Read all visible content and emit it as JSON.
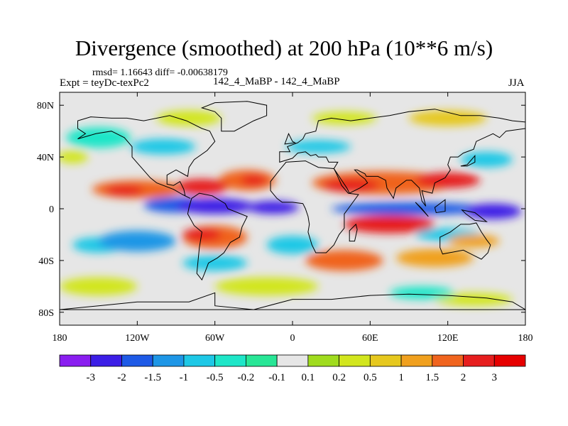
{
  "header": {
    "title": "Divergence (smoothed) at 200 hPa (10**6 m/s)",
    "stats": "rmsd= 1.16643 diff= -0.00638179",
    "expt": "Expt = teyDc-texPc2",
    "subtitle": "142_4_MaBP - 142_4_MaBP",
    "season": "JJA"
  },
  "chart_data": {
    "type": "heatmap",
    "title": "Divergence (smoothed) at 200 hPa (10**6 m/s)",
    "units": "10**6 m/s",
    "xlim": [
      -180,
      180
    ],
    "ylim": [
      -90,
      90
    ],
    "x_ticks": [
      {
        "value": -180,
        "label": "180"
      },
      {
        "value": -120,
        "label": "120W"
      },
      {
        "value": -60,
        "label": "60W"
      },
      {
        "value": 0,
        "label": "0"
      },
      {
        "value": 60,
        "label": "60E"
      },
      {
        "value": 120,
        "label": "120E"
      },
      {
        "value": 180,
        "label": "180"
      }
    ],
    "y_ticks": [
      {
        "value": 80,
        "label": "80N"
      },
      {
        "value": 40,
        "label": "40N"
      },
      {
        "value": 0,
        "label": "0"
      },
      {
        "value": -40,
        "label": "40S"
      },
      {
        "value": -80,
        "label": "80S"
      }
    ],
    "colorbar": {
      "levels": [
        "-3",
        "-2",
        "-1.5",
        "-1",
        "-0.5",
        "-0.2",
        "-0.1",
        "0.1",
        "0.2",
        "0.5",
        "1",
        "1.5",
        "2",
        "3"
      ],
      "colors": [
        "#8a1ef0",
        "#3c1ee6",
        "#1e5ae6",
        "#1e96e6",
        "#1ec8e6",
        "#1ee6c8",
        "#28e696",
        "#e6e6e6",
        "#a0dc1e",
        "#d2e61e",
        "#e6c81e",
        "#f0a01e",
        "#f0641e",
        "#e61e1e",
        "#e60000"
      ]
    },
    "regions": [
      {
        "lon": -120,
        "lat": 15,
        "rx": 35,
        "ry": 7,
        "value": 1.6
      },
      {
        "lon": -130,
        "lat": 14,
        "rx": 15,
        "ry": 4,
        "value": 2.5
      },
      {
        "lon": -70,
        "lat": 17,
        "rx": 20,
        "ry": 6,
        "value": 2.1
      },
      {
        "lon": -35,
        "lat": 22,
        "rx": 22,
        "ry": 8,
        "value": 1.6
      },
      {
        "lon": -30,
        "lat": 22,
        "rx": 10,
        "ry": 4,
        "value": 2.5
      },
      {
        "lon": 70,
        "lat": 20,
        "rx": 55,
        "ry": 9,
        "value": 1.6
      },
      {
        "lon": 45,
        "lat": 18,
        "rx": 22,
        "ry": 5,
        "value": 2.5
      },
      {
        "lon": 120,
        "lat": 22,
        "rx": 25,
        "ry": 6,
        "value": 2.5
      },
      {
        "lon": -60,
        "lat": 2,
        "rx": 30,
        "ry": 6,
        "value": -2.5
      },
      {
        "lon": -90,
        "lat": 3,
        "rx": 25,
        "ry": 6,
        "value": -2.0
      },
      {
        "lon": -15,
        "lat": 1,
        "rx": 20,
        "ry": 5,
        "value": -2.5
      },
      {
        "lon": 90,
        "lat": 0,
        "rx": 60,
        "ry": 5,
        "value": -2.0
      },
      {
        "lon": 155,
        "lat": -2,
        "rx": 22,
        "ry": 6,
        "value": -2.5
      },
      {
        "lon": -60,
        "lat": -22,
        "rx": 25,
        "ry": 9,
        "value": 1.6
      },
      {
        "lon": -70,
        "lat": -20,
        "rx": 15,
        "ry": 5,
        "value": 2.5
      },
      {
        "lon": 75,
        "lat": -12,
        "rx": 35,
        "ry": 7,
        "value": 2.1
      },
      {
        "lon": 70,
        "lat": -12,
        "rx": 20,
        "ry": 4,
        "value": 2.7
      },
      {
        "lon": 40,
        "lat": -40,
        "rx": 30,
        "ry": 8,
        "value": 1.5
      },
      {
        "lon": 110,
        "lat": -38,
        "rx": 30,
        "ry": 7,
        "value": 1.3
      },
      {
        "lon": 140,
        "lat": -25,
        "rx": 20,
        "ry": 5,
        "value": 1.2
      },
      {
        "lon": -120,
        "lat": -25,
        "rx": 30,
        "ry": 8,
        "value": -1.2
      },
      {
        "lon": -150,
        "lat": -28,
        "rx": 20,
        "ry": 6,
        "value": -0.8
      },
      {
        "lon": -60,
        "lat": -42,
        "rx": 25,
        "ry": 6,
        "value": -0.8
      },
      {
        "lon": 0,
        "lat": -28,
        "rx": 20,
        "ry": 7,
        "value": -0.6
      },
      {
        "lon": 120,
        "lat": -20,
        "rx": 25,
        "ry": 5,
        "value": -0.7
      },
      {
        "lon": -150,
        "lat": 55,
        "rx": 25,
        "ry": 8,
        "value": -0.5
      },
      {
        "lon": -100,
        "lat": 48,
        "rx": 25,
        "ry": 6,
        "value": -0.6
      },
      {
        "lon": 20,
        "lat": 48,
        "rx": 25,
        "ry": 5,
        "value": -0.6
      },
      {
        "lon": 150,
        "lat": 38,
        "rx": 20,
        "ry": 6,
        "value": -0.7
      },
      {
        "lon": 120,
        "lat": 70,
        "rx": 30,
        "ry": 6,
        "value": 0.5
      },
      {
        "lon": -170,
        "lat": 40,
        "rx": 12,
        "ry": 5,
        "value": 0.3
      },
      {
        "lon": -80,
        "lat": 70,
        "rx": 25,
        "ry": 6,
        "value": 0.4
      },
      {
        "lon": 40,
        "lat": 70,
        "rx": 25,
        "ry": 5,
        "value": 0.3
      },
      {
        "lon": -150,
        "lat": -60,
        "rx": 30,
        "ry": 7,
        "value": 0.3
      },
      {
        "lon": -20,
        "lat": -60,
        "rx": 40,
        "ry": 7,
        "value": 0.3
      },
      {
        "lon": 140,
        "lat": -70,
        "rx": 30,
        "ry": 5,
        "value": 0.3
      },
      {
        "lon": 100,
        "lat": -65,
        "rx": 25,
        "ry": 5,
        "value": -0.3
      }
    ],
    "continents": [
      [
        [
          -166,
          68
        ],
        [
          -156,
          71
        ],
        [
          -140,
          70
        ],
        [
          -128,
          70
        ],
        [
          -115,
          68
        ],
        [
          -95,
          72
        ],
        [
          -82,
          68
        ],
        [
          -70,
          62
        ],
        [
          -64,
          60
        ],
        [
          -60,
          52
        ],
        [
          -66,
          45
        ],
        [
          -76,
          38
        ],
        [
          -80,
          32
        ],
        [
          -81,
          25
        ],
        [
          -90,
          30
        ],
        [
          -97,
          26
        ],
        [
          -97,
          19
        ],
        [
          -92,
          18
        ],
        [
          -87,
          21
        ],
        [
          -84,
          15
        ],
        [
          -83,
          10
        ],
        [
          -79,
          8
        ],
        [
          -85,
          11
        ],
        [
          -92,
          15
        ],
        [
          -105,
          20
        ],
        [
          -110,
          24
        ],
        [
          -117,
          32
        ],
        [
          -124,
          40
        ],
        [
          -124,
          48
        ],
        [
          -130,
          55
        ],
        [
          -140,
          60
        ],
        [
          -152,
          58
        ],
        [
          -166,
          54
        ],
        [
          -160,
          58
        ],
        [
          -166,
          62
        ]
      ],
      [
        [
          -78,
          8
        ],
        [
          -72,
          12
        ],
        [
          -62,
          10
        ],
        [
          -52,
          4
        ],
        [
          -50,
          0
        ],
        [
          -35,
          -6
        ],
        [
          -39,
          -14
        ],
        [
          -41,
          -22
        ],
        [
          -48,
          -26
        ],
        [
          -53,
          -34
        ],
        [
          -58,
          -38
        ],
        [
          -65,
          -42
        ],
        [
          -68,
          -50
        ],
        [
          -70,
          -55
        ],
        [
          -74,
          -50
        ],
        [
          -73,
          -40
        ],
        [
          -72,
          -30
        ],
        [
          -70,
          -18
        ],
        [
          -76,
          -13
        ],
        [
          -81,
          -4
        ],
        [
          -80,
          1
        ]
      ],
      [
        [
          -10,
          36
        ],
        [
          -10,
          44
        ],
        [
          -2,
          44
        ],
        [
          -4,
          48
        ],
        [
          4,
          51
        ],
        [
          8,
          54
        ],
        [
          10,
          58
        ],
        [
          18,
          60
        ],
        [
          20,
          68
        ],
        [
          30,
          70
        ],
        [
          45,
          68
        ],
        [
          60,
          70
        ],
        [
          75,
          72
        ],
        [
          90,
          75
        ],
        [
          110,
          77
        ],
        [
          130,
          72
        ],
        [
          145,
          72
        ],
        [
          160,
          70
        ],
        [
          170,
          68
        ],
        [
          180,
          67
        ],
        [
          180,
          62
        ],
        [
          165,
          60
        ],
        [
          160,
          55
        ],
        [
          155,
          58
        ],
        [
          142,
          52
        ],
        [
          140,
          46
        ],
        [
          132,
          43
        ],
        [
          128,
          40
        ],
        [
          122,
          40
        ],
        [
          120,
          34
        ],
        [
          122,
          30
        ],
        [
          118,
          24
        ],
        [
          110,
          20
        ],
        [
          108,
          12
        ],
        [
          100,
          14
        ],
        [
          103,
          2
        ],
        [
          100,
          6
        ],
        [
          98,
          16
        ],
        [
          92,
          22
        ],
        [
          88,
          22
        ],
        [
          80,
          16
        ],
        [
          78,
          8
        ],
        [
          73,
          16
        ],
        [
          72,
          22
        ],
        [
          66,
          25
        ],
        [
          57,
          25
        ],
        [
          56,
          27
        ],
        [
          50,
          30
        ],
        [
          48,
          30
        ],
        [
          52,
          26
        ],
        [
          56,
          23
        ],
        [
          58,
          20
        ],
        [
          52,
          16
        ],
        [
          44,
          12
        ],
        [
          42,
          16
        ],
        [
          38,
          22
        ],
        [
          34,
          28
        ],
        [
          32,
          31
        ],
        [
          35,
          36
        ],
        [
          28,
          36
        ],
        [
          26,
          40
        ],
        [
          20,
          40
        ],
        [
          18,
          42
        ],
        [
          14,
          41
        ],
        [
          10,
          44
        ],
        [
          4,
          43
        ],
        [
          0,
          39
        ]
      ],
      [
        [
          -17,
          21
        ],
        [
          -17,
          14
        ],
        [
          -12,
          8
        ],
        [
          -8,
          5
        ],
        [
          0,
          5
        ],
        [
          8,
          4
        ],
        [
          10,
          0
        ],
        [
          12,
          -6
        ],
        [
          13,
          -12
        ],
        [
          12,
          -18
        ],
        [
          15,
          -28
        ],
        [
          18,
          -34
        ],
        [
          26,
          -34
        ],
        [
          32,
          -28
        ],
        [
          36,
          -20
        ],
        [
          40,
          -15
        ],
        [
          40,
          -4
        ],
        [
          43,
          0
        ],
        [
          51,
          11
        ],
        [
          43,
          12
        ],
        [
          38,
          18
        ],
        [
          34,
          27
        ],
        [
          32,
          31
        ],
        [
          20,
          32
        ],
        [
          10,
          37
        ],
        [
          -5,
          36
        ],
        [
          -10,
          30
        ]
      ],
      [
        [
          114,
          -22
        ],
        [
          122,
          -18
        ],
        [
          130,
          -12
        ],
        [
          137,
          -12
        ],
        [
          142,
          -11
        ],
        [
          146,
          -18
        ],
        [
          150,
          -24
        ],
        [
          153,
          -28
        ],
        [
          151,
          -34
        ],
        [
          146,
          -39
        ],
        [
          138,
          -35
        ],
        [
          132,
          -32
        ],
        [
          116,
          -35
        ],
        [
          114,
          -30
        ]
      ],
      [
        [
          -55,
          60
        ],
        [
          -45,
          60
        ],
        [
          -30,
          68
        ],
        [
          -20,
          72
        ],
        [
          -20,
          80
        ],
        [
          -35,
          83
        ],
        [
          -60,
          82
        ],
        [
          -70,
          78
        ],
        [
          -60,
          75
        ],
        [
          -55,
          70
        ]
      ],
      [
        [
          44,
          -25
        ],
        [
          48,
          -25
        ],
        [
          50,
          -16
        ],
        [
          49,
          -12
        ],
        [
          44,
          -17
        ]
      ],
      [
        [
          95,
          5
        ],
        [
          105,
          -6
        ],
        [
          100,
          0
        ]
      ],
      [
        [
          110,
          1
        ],
        [
          118,
          7
        ],
        [
          118,
          -2
        ],
        [
          111,
          -3
        ]
      ],
      [
        [
          131,
          -1
        ],
        [
          141,
          -3
        ],
        [
          150,
          -10
        ],
        [
          141,
          -9
        ],
        [
          134,
          -4
        ]
      ],
      [
        [
          130,
          33
        ],
        [
          135,
          34
        ],
        [
          141,
          41
        ],
        [
          141,
          36
        ],
        [
          135,
          33
        ]
      ],
      [
        [
          -6,
          50
        ],
        [
          -3,
          58
        ],
        [
          0,
          52
        ],
        [
          2,
          51
        ]
      ],
      [
        [
          -180,
          -78
        ],
        [
          -150,
          -75
        ],
        [
          -120,
          -72
        ],
        [
          -80,
          -72
        ],
        [
          -60,
          -65
        ],
        [
          -60,
          -75
        ],
        [
          -30,
          -78
        ],
        [
          0,
          -70
        ],
        [
          30,
          -70
        ],
        [
          60,
          -67
        ],
        [
          90,
          -66
        ],
        [
          120,
          -67
        ],
        [
          150,
          -69
        ],
        [
          170,
          -72
        ],
        [
          180,
          -78
        ]
      ]
    ]
  }
}
